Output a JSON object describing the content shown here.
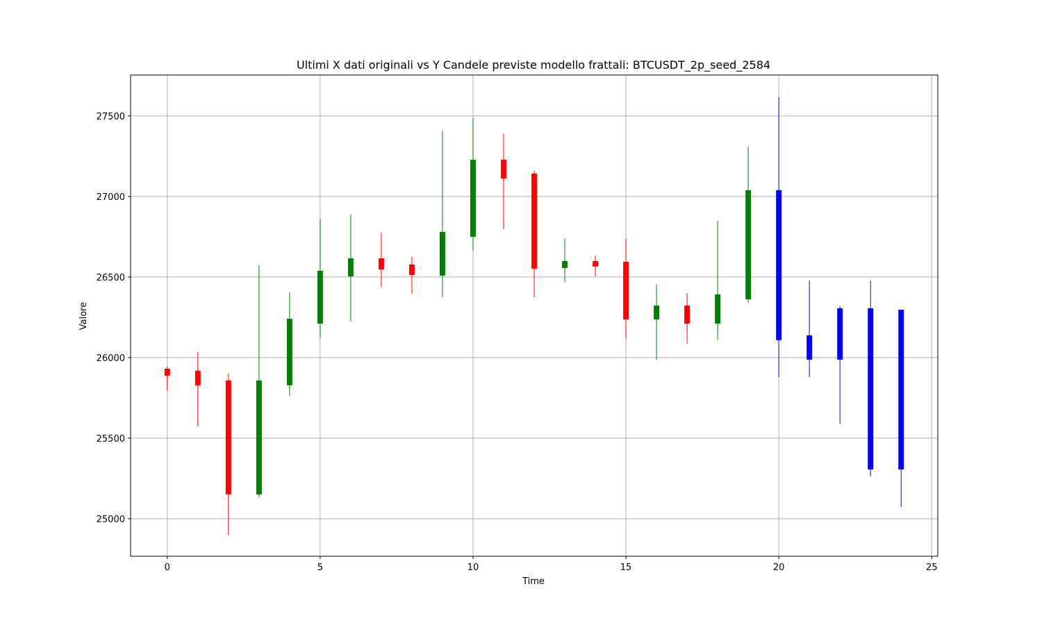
{
  "chart_data": {
    "type": "candlestick",
    "title": "Ultimi X dati originali vs Y Candele previste modello frattali: BTCUSDT_2p_seed_2584",
    "xlabel": "Time",
    "ylabel": "Valore",
    "x": [
      0,
      1,
      2,
      3,
      4,
      5,
      6,
      7,
      8,
      9,
      10,
      11,
      12,
      13,
      14,
      15,
      16,
      17,
      18,
      19,
      20,
      21,
      22,
      23,
      24
    ],
    "open": [
      25931,
      25918,
      25858,
      25151,
      25828,
      26211,
      26504,
      26616,
      26578,
      26509,
      26750,
      27228,
      27142,
      26556,
      26599,
      26595,
      26237,
      26323,
      26211,
      26362,
      27039,
      26138,
      26306,
      26306,
      26297
    ],
    "high": [
      25944,
      26034,
      25901,
      26573,
      26405,
      26862,
      26888,
      26776,
      26625,
      27409,
      27487,
      27388,
      27159,
      26741,
      26634,
      26737,
      26453,
      26401,
      26849,
      27310,
      27616,
      26478,
      26319,
      26478,
      26297
    ],
    "low": [
      25793,
      25573,
      24897,
      25134,
      25763,
      26125,
      26224,
      26440,
      26397,
      26375,
      26664,
      26797,
      26375,
      26470,
      26504,
      26116,
      25987,
      26086,
      26112,
      26341,
      25879,
      25879,
      25591,
      25263,
      25073
    ],
    "close": [
      25888,
      25828,
      25151,
      25858,
      26241,
      26539,
      26616,
      26547,
      26513,
      26780,
      27228,
      27112,
      26552,
      26599,
      26565,
      26237,
      26323,
      26211,
      26392,
      27039,
      26108,
      25987,
      25987,
      25306,
      25306
    ],
    "colors": [
      "red",
      "red",
      "red",
      "green",
      "green",
      "green",
      "green",
      "red",
      "red",
      "green",
      "green",
      "red",
      "red",
      "green",
      "red",
      "red",
      "green",
      "red",
      "green",
      "green",
      "blue",
      "blue",
      "blue",
      "blue",
      "blue"
    ],
    "xlim": [
      -1.2,
      25.2
    ],
    "ylim": [
      24767,
      27754
    ],
    "xticks": [
      0,
      5,
      10,
      15,
      20,
      25
    ],
    "yticks": [
      25000,
      25500,
      26000,
      26500,
      27000,
      27500
    ],
    "grid": true
  }
}
